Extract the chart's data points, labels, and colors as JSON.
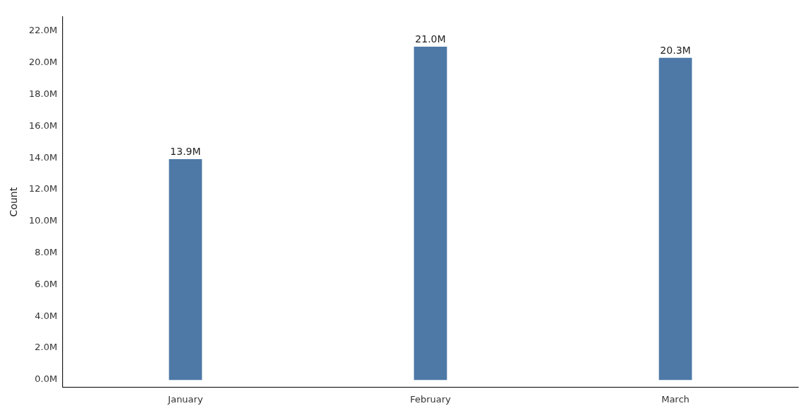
{
  "chart_data": {
    "type": "bar",
    "ylabel": "Count",
    "categories": [
      "January",
      "February",
      "March"
    ],
    "values": [
      13.9,
      21.0,
      20.3
    ],
    "color": "#4e79a7",
    "value_labels": [
      "13.9M",
      "21.0M",
      "20.3M"
    ],
    "ylim": [
      -0.47,
      22.9
    ],
    "yticks": [
      {
        "value": 0,
        "label": "0.0M"
      },
      {
        "value": 2,
        "label": "2.0M"
      },
      {
        "value": 4,
        "label": "4.0M"
      },
      {
        "value": 6,
        "label": "6.0M"
      },
      {
        "value": 8,
        "label": "8.0M"
      },
      {
        "value": 10,
        "label": "10.0M"
      },
      {
        "value": 12,
        "label": "12.0M"
      },
      {
        "value": 14,
        "label": "14.0M"
      },
      {
        "value": 16,
        "label": "16.0M"
      },
      {
        "value": 18,
        "label": "18.0M"
      },
      {
        "value": 20,
        "label": "20.0M"
      },
      {
        "value": 22,
        "label": "22.0M"
      }
    ],
    "grid": false,
    "legend": false
  }
}
